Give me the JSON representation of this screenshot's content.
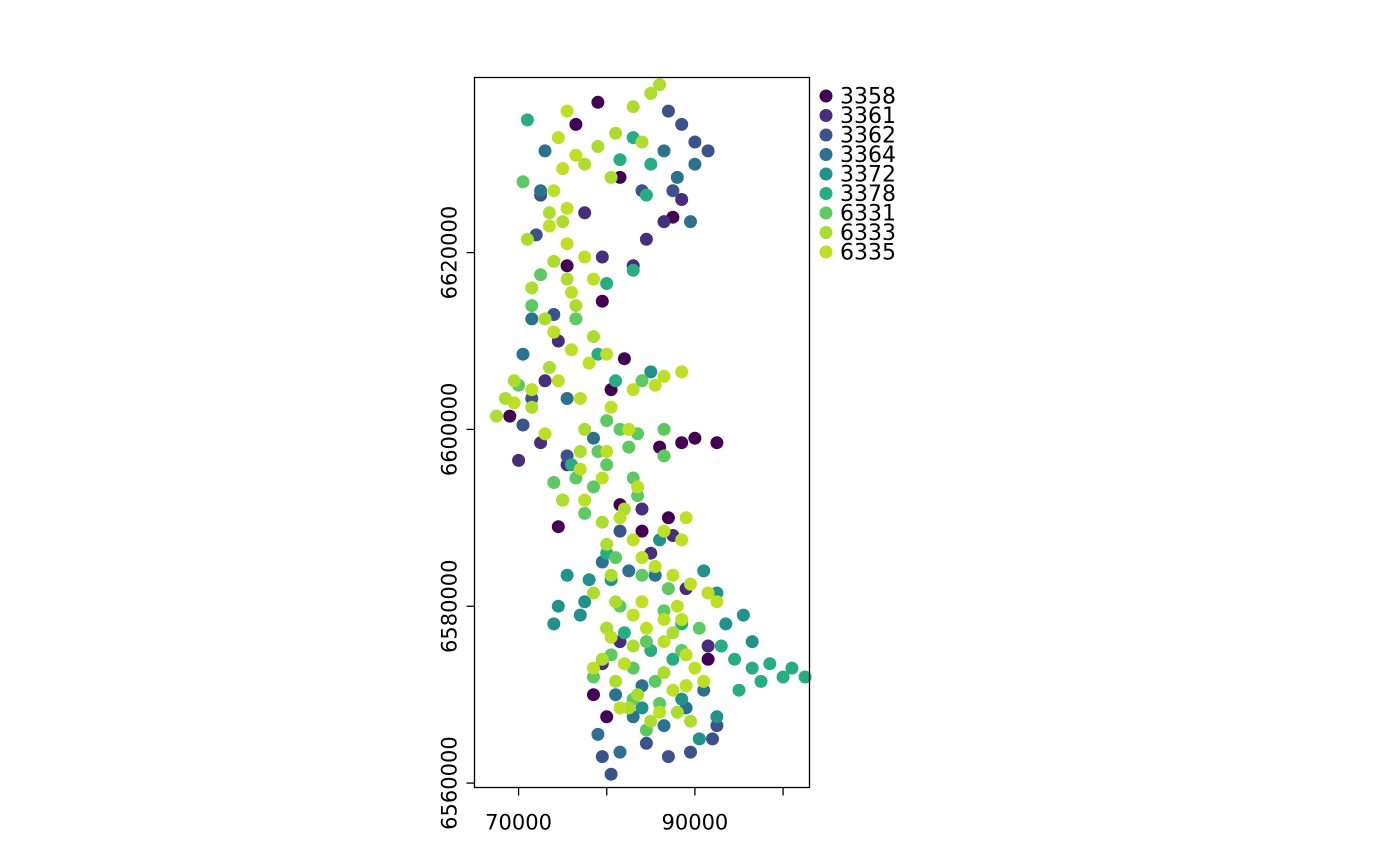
{
  "chart_data": {
    "type": "scatter",
    "title": "",
    "xlabel": "",
    "ylabel": "",
    "xlim": [
      65000,
      103000
    ],
    "ylim": [
      6559500,
      6639800
    ],
    "grid": false,
    "legend_position": "right",
    "x_ticks": [
      {
        "value": 70000,
        "label": "70000"
      },
      {
        "value": 80000,
        "label": ""
      },
      {
        "value": 90000,
        "label": "90000"
      },
      {
        "value": 100000,
        "label": ""
      }
    ],
    "y_ticks": [
      {
        "value": 6560000,
        "label": "6560000"
      },
      {
        "value": 6580000,
        "label": "6580000"
      },
      {
        "value": 6600000,
        "label": "6600000"
      },
      {
        "value": 6620000,
        "label": "6620000"
      }
    ],
    "series": [
      {
        "name": "3358",
        "color": "#440154",
        "points": [
          [
            79000,
            6637000
          ],
          [
            76500,
            6634500
          ],
          [
            81500,
            6628500
          ],
          [
            87500,
            6624000
          ],
          [
            75500,
            6618500
          ],
          [
            79500,
            6614500
          ],
          [
            80500,
            6604500
          ],
          [
            82000,
            6608000
          ],
          [
            90000,
            6599000
          ],
          [
            92500,
            6598500
          ],
          [
            88500,
            6598500
          ],
          [
            86000,
            6598000
          ],
          [
            69000,
            6601500
          ],
          [
            81500,
            6591500
          ],
          [
            87000,
            6590000
          ],
          [
            84000,
            6588500
          ],
          [
            91500,
            6574000
          ],
          [
            80000,
            6567500
          ],
          [
            74500,
            6589000
          ],
          [
            78500,
            6570000
          ]
        ]
      },
      {
        "name": "3361",
        "color": "#472d7b",
        "points": [
          [
            86500,
            6623500
          ],
          [
            88500,
            6626000
          ],
          [
            84500,
            6621500
          ],
          [
            83000,
            6618500
          ],
          [
            77500,
            6624500
          ],
          [
            74500,
            6610000
          ],
          [
            70000,
            6596500
          ],
          [
            72500,
            6598500
          ],
          [
            75500,
            6596000
          ],
          [
            84000,
            6591000
          ],
          [
            85000,
            6586000
          ],
          [
            87500,
            6588000
          ],
          [
            89000,
            6582000
          ],
          [
            91500,
            6575500
          ],
          [
            79500,
            6573500
          ],
          [
            81500,
            6576000
          ],
          [
            73000,
            6605500
          ],
          [
            79500,
            6619500
          ]
        ]
      },
      {
        "name": "3362",
        "color": "#3b528b",
        "points": [
          [
            90000,
            6632500
          ],
          [
            91500,
            6631500
          ],
          [
            88500,
            6634500
          ],
          [
            87000,
            6636000
          ],
          [
            84000,
            6627000
          ],
          [
            87500,
            6627000
          ],
          [
            72500,
            6626500
          ],
          [
            72000,
            6622000
          ],
          [
            74000,
            6613000
          ],
          [
            70500,
            6600500
          ],
          [
            71500,
            6603500
          ],
          [
            75500,
            6597000
          ],
          [
            81500,
            6588500
          ],
          [
            92000,
            6565000
          ],
          [
            89500,
            6563500
          ],
          [
            87000,
            6563000
          ],
          [
            84500,
            6564500
          ],
          [
            80500,
            6561000
          ],
          [
            92500,
            6566500
          ],
          [
            79500,
            6563000
          ]
        ]
      },
      {
        "name": "3364",
        "color": "#2c728e",
        "points": [
          [
            88000,
            6628500
          ],
          [
            90000,
            6630000
          ],
          [
            86500,
            6631500
          ],
          [
            89500,
            6623500
          ],
          [
            73000,
            6631500
          ],
          [
            72500,
            6627000
          ],
          [
            71500,
            6612500
          ],
          [
            70500,
            6608500
          ],
          [
            75500,
            6603500
          ],
          [
            78500,
            6599000
          ],
          [
            79500,
            6585000
          ],
          [
            82500,
            6584000
          ],
          [
            85500,
            6583500
          ],
          [
            81000,
            6570000
          ],
          [
            83000,
            6567500
          ],
          [
            86500,
            6566500
          ],
          [
            79000,
            6565500
          ],
          [
            81500,
            6563500
          ],
          [
            89000,
            6568500
          ],
          [
            91000,
            6570500
          ],
          [
            84000,
            6571000
          ]
        ]
      },
      {
        "name": "3372",
        "color": "#21918c",
        "points": [
          [
            74500,
            6580000
          ],
          [
            75500,
            6583500
          ],
          [
            78000,
            6583000
          ],
          [
            74000,
            6578000
          ],
          [
            77000,
            6579000
          ],
          [
            91000,
            6584000
          ],
          [
            92500,
            6581500
          ],
          [
            93500,
            6578000
          ],
          [
            95500,
            6579000
          ],
          [
            96500,
            6576000
          ],
          [
            90500,
            6565000
          ],
          [
            92500,
            6567500
          ],
          [
            88500,
            6569500
          ],
          [
            84000,
            6568500
          ],
          [
            80500,
            6583000
          ],
          [
            86000,
            6587500
          ],
          [
            77500,
            6580500
          ],
          [
            85000,
            6606500
          ]
        ]
      },
      {
        "name": "3378",
        "color": "#27ad81",
        "points": [
          [
            85000,
            6630000
          ],
          [
            83000,
            6633000
          ],
          [
            81500,
            6630500
          ],
          [
            84500,
            6626500
          ],
          [
            83000,
            6618000
          ],
          [
            80000,
            6616500
          ],
          [
            81000,
            6605500
          ],
          [
            79000,
            6608500
          ],
          [
            93000,
            6575500
          ],
          [
            94500,
            6574000
          ],
          [
            96500,
            6573000
          ],
          [
            98500,
            6573500
          ],
          [
            101000,
            6573000
          ],
          [
            102500,
            6572000
          ],
          [
            100000,
            6572000
          ],
          [
            97500,
            6571500
          ],
          [
            95000,
            6570500
          ],
          [
            85000,
            6575000
          ],
          [
            82000,
            6577000
          ],
          [
            87500,
            6574000
          ],
          [
            88500,
            6578000
          ],
          [
            80000,
            6586000
          ],
          [
            76000,
            6596000
          ],
          [
            71000,
            6635000
          ]
        ]
      },
      {
        "name": "6331",
        "color": "#5ec962",
        "points": [
          [
            80000,
            6601000
          ],
          [
            81500,
            6600000
          ],
          [
            83500,
            6599500
          ],
          [
            82500,
            6598000
          ],
          [
            79000,
            6597500
          ],
          [
            76500,
            6594500
          ],
          [
            74000,
            6594000
          ],
          [
            75000,
            6592000
          ],
          [
            78500,
            6593500
          ],
          [
            77500,
            6590500
          ],
          [
            83000,
            6594500
          ],
          [
            86500,
            6600000
          ],
          [
            86500,
            6597000
          ],
          [
            83500,
            6592500
          ],
          [
            80000,
            6596000
          ],
          [
            84000,
            6605500
          ],
          [
            71500,
            6614000
          ],
          [
            76500,
            6612500
          ],
          [
            70000,
            6605000
          ],
          [
            70500,
            6628000
          ],
          [
            72500,
            6617500
          ],
          [
            78500,
            6572000
          ],
          [
            80500,
            6574500
          ],
          [
            84500,
            6576000
          ],
          [
            86500,
            6579500
          ],
          [
            88500,
            6575000
          ],
          [
            90500,
            6577500
          ],
          [
            89000,
            6571000
          ],
          [
            85500,
            6571500
          ],
          [
            83000,
            6573000
          ],
          [
            87000,
            6582000
          ],
          [
            84000,
            6583500
          ],
          [
            81500,
            6580000
          ],
          [
            80000,
            6577500
          ],
          [
            83000,
            6569500
          ],
          [
            86000,
            6569000
          ],
          [
            84500,
            6566000
          ],
          [
            81000,
            6585500
          ]
        ]
      },
      {
        "name": "6333",
        "color": "#addc30",
        "points": [
          [
            85000,
            6638000
          ],
          [
            86000,
            6639000
          ],
          [
            83000,
            6636500
          ],
          [
            81000,
            6633500
          ],
          [
            79000,
            6632000
          ],
          [
            77500,
            6630000
          ],
          [
            84000,
            6632500
          ],
          [
            80500,
            6628500
          ],
          [
            73500,
            6624500
          ],
          [
            75000,
            6623500
          ],
          [
            71000,
            6621500
          ],
          [
            74000,
            6619000
          ],
          [
            75500,
            6617000
          ],
          [
            76500,
            6614000
          ],
          [
            73000,
            6612500
          ],
          [
            71500,
            6616000
          ],
          [
            78500,
            6610500
          ],
          [
            73500,
            6607000
          ],
          [
            68500,
            6603500
          ],
          [
            67500,
            6601500
          ],
          [
            69500,
            6605500
          ],
          [
            71500,
            6602500
          ],
          [
            77000,
            6597500
          ],
          [
            80500,
            6583500
          ],
          [
            79500,
            6589500
          ],
          [
            80000,
            6587000
          ],
          [
            81000,
            6580500
          ],
          [
            80000,
            6577500
          ],
          [
            79500,
            6574000
          ],
          [
            81000,
            6571500
          ],
          [
            83500,
            6570000
          ],
          [
            86500,
            6572500
          ],
          [
            88000,
            6568000
          ],
          [
            85000,
            6567000
          ],
          [
            82500,
            6568500
          ],
          [
            89500,
            6567000
          ],
          [
            83000,
            6575500
          ],
          [
            87500,
            6577000
          ],
          [
            78500,
            6581500
          ],
          [
            82000,
            6591000
          ],
          [
            75000,
            6592000
          ],
          [
            77500,
            6600000
          ]
        ]
      },
      {
        "name": "6335",
        "color": "#bddf26",
        "points": [
          [
            75500,
            6636000
          ],
          [
            74500,
            6633000
          ],
          [
            75000,
            6629500
          ],
          [
            76500,
            6631000
          ],
          [
            74000,
            6627000
          ],
          [
            75500,
            6625000
          ],
          [
            73500,
            6623000
          ],
          [
            75500,
            6621000
          ],
          [
            77500,
            6619500
          ],
          [
            78500,
            6617000
          ],
          [
            76000,
            6615500
          ],
          [
            74000,
            6611000
          ],
          [
            76000,
            6609000
          ],
          [
            78000,
            6607500
          ],
          [
            80000,
            6608500
          ],
          [
            74500,
            6605500
          ],
          [
            77000,
            6603500
          ],
          [
            80500,
            6602500
          ],
          [
            83000,
            6604500
          ],
          [
            85500,
            6605000
          ],
          [
            88500,
            6606500
          ],
          [
            86500,
            6606000
          ],
          [
            69500,
            6603000
          ],
          [
            71500,
            6604500
          ],
          [
            73000,
            6599500
          ],
          [
            80000,
            6597500
          ],
          [
            82500,
            6600000
          ],
          [
            83500,
            6593500
          ],
          [
            77000,
            6595500
          ],
          [
            79500,
            6594500
          ],
          [
            77500,
            6592000
          ],
          [
            81500,
            6590000
          ],
          [
            83000,
            6587500
          ],
          [
            84000,
            6585500
          ],
          [
            86500,
            6588500
          ],
          [
            88500,
            6587500
          ],
          [
            85500,
            6584500
          ],
          [
            87500,
            6583500
          ],
          [
            89500,
            6582500
          ],
          [
            91500,
            6581500
          ],
          [
            92500,
            6580500
          ],
          [
            88000,
            6580000
          ],
          [
            84000,
            6580500
          ],
          [
            86500,
            6578500
          ],
          [
            84500,
            6577500
          ],
          [
            86500,
            6576000
          ],
          [
            89000,
            6574500
          ],
          [
            90000,
            6573000
          ],
          [
            91000,
            6571500
          ],
          [
            89000,
            6571000
          ],
          [
            83000,
            6579000
          ],
          [
            82000,
            6573500
          ],
          [
            80500,
            6576500
          ],
          [
            78500,
            6573000
          ],
          [
            81500,
            6568500
          ],
          [
            86000,
            6568000
          ],
          [
            87500,
            6570500
          ],
          [
            88500,
            6578500
          ],
          [
            89000,
            6590000
          ]
        ]
      }
    ]
  }
}
